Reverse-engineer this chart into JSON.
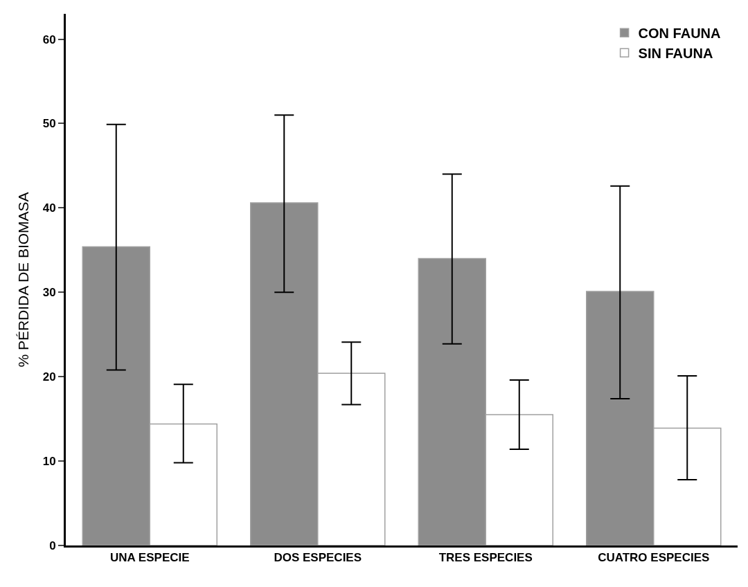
{
  "chart_data": {
    "type": "bar",
    "ylabel": "% PÉRDIDA DE BIOMASA",
    "categories": [
      "UNA ESPECIE",
      "DOS ESPECIES",
      "TRES ESPECIES",
      "CUATRO ESPECIES"
    ],
    "series": [
      {
        "name": "CON FAUNA",
        "color": "#8c8c8c",
        "values": [
          35.4,
          40.6,
          34.0,
          30.1
        ],
        "errors": [
          [
            20.8,
            49.9
          ],
          [
            30.0,
            51.0
          ],
          [
            23.9,
            44.0
          ],
          [
            17.4,
            42.6
          ]
        ]
      },
      {
        "name": "SIN FAUNA",
        "color": "#ffffff",
        "values": [
          14.4,
          20.4,
          15.5,
          13.9
        ],
        "errors": [
          [
            9.8,
            19.1
          ],
          [
            16.7,
            24.1
          ],
          [
            11.4,
            19.6
          ],
          [
            7.8,
            20.1
          ]
        ]
      }
    ],
    "ylim": [
      0,
      63
    ],
    "yticks": [
      0,
      10,
      20,
      30,
      40,
      50,
      60
    ],
    "legend": "top right"
  }
}
